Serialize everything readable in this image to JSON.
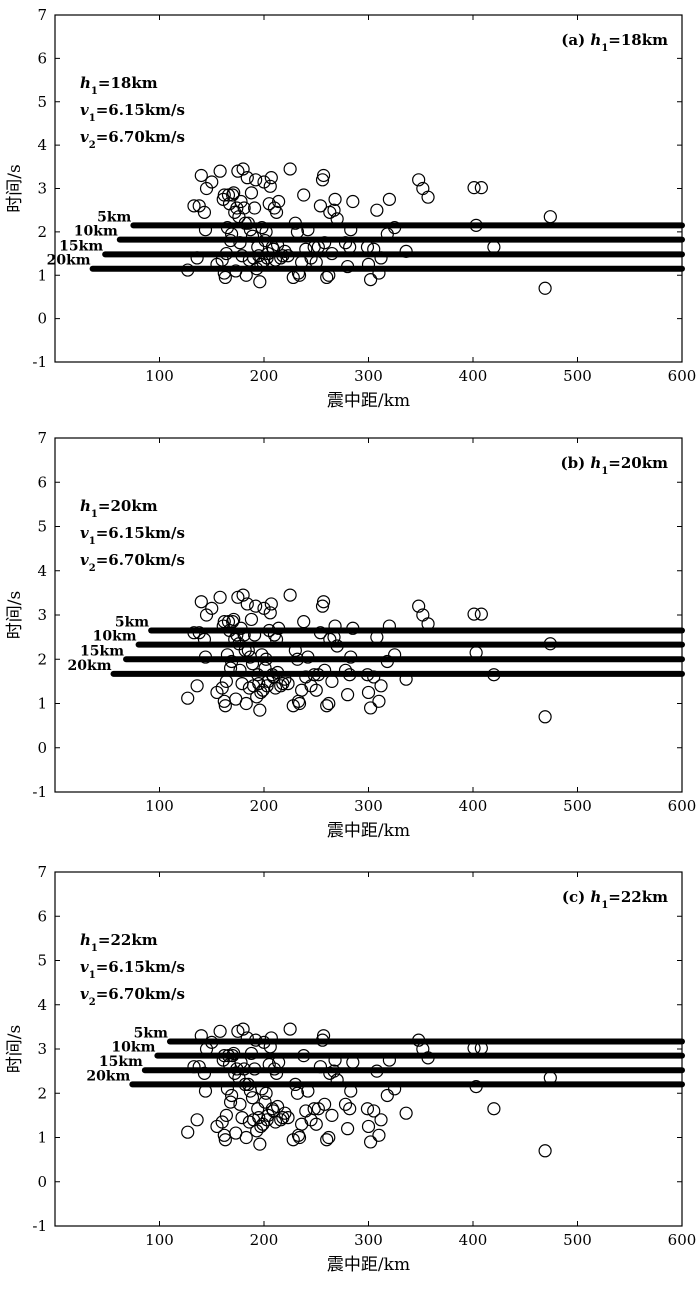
{
  "chart_data": [
    {
      "type": "scatter",
      "panel_label": "(a) ",
      "title_h": "h",
      "title_sub": "1",
      "title_val": "=18km",
      "params": [
        {
          "base": "h",
          "sub": "1",
          "rest": "=18km"
        },
        {
          "base": "v",
          "sub": "1",
          "rest": "=6.15km/s"
        },
        {
          "base": "v",
          "sub": "2",
          "rest": "=6.70km/s"
        }
      ],
      "xlabel": "震中距/km",
      "ylabel": "时间/s",
      "xlim": [
        0,
        600
      ],
      "ylim": [
        -1,
        7
      ],
      "xticks": [
        100,
        200,
        300,
        400,
        500,
        600
      ],
      "yticks": [
        -1,
        0,
        1,
        2,
        3,
        4,
        5,
        6,
        7
      ],
      "lines": [
        {
          "label": "5km",
          "x_start": 75,
          "y": 2.15
        },
        {
          "label": "10km",
          "x_start": 62,
          "y": 1.82
        },
        {
          "label": "15km",
          "x_start": 48,
          "y": 1.48
        },
        {
          "label": "20km",
          "x_start": 36,
          "y": 1.15
        }
      ]
    },
    {
      "type": "scatter",
      "panel_label": "(b) ",
      "title_h": "h",
      "title_sub": "1",
      "title_val": "=20km",
      "params": [
        {
          "base": "h",
          "sub": "1",
          "rest": "=20km"
        },
        {
          "base": "v",
          "sub": "1",
          "rest": "=6.15km/s"
        },
        {
          "base": "v",
          "sub": "2",
          "rest": "=6.70km/s"
        }
      ],
      "xlabel": "震中距/km",
      "ylabel": "时间/s",
      "xlim": [
        0,
        600
      ],
      "ylim": [
        -1,
        7
      ],
      "xticks": [
        100,
        200,
        300,
        400,
        500,
        600
      ],
      "yticks": [
        -1,
        0,
        1,
        2,
        3,
        4,
        5,
        6,
        7
      ],
      "lines": [
        {
          "label": "5km",
          "x_start": 92,
          "y": 2.65
        },
        {
          "label": "10km",
          "x_start": 80,
          "y": 2.33
        },
        {
          "label": "15km",
          "x_start": 68,
          "y": 2.0
        },
        {
          "label": "20km",
          "x_start": 56,
          "y": 1.67
        }
      ]
    },
    {
      "type": "scatter",
      "panel_label": "(c) ",
      "title_h": "h",
      "title_sub": "1",
      "title_val": "=22km",
      "params": [
        {
          "base": "h",
          "sub": "1",
          "rest": "=22km"
        },
        {
          "base": "v",
          "sub": "1",
          "rest": "=6.15km/s"
        },
        {
          "base": "v",
          "sub": "2",
          "rest": "=6.70km/s"
        }
      ],
      "xlabel": "震中距/km",
      "ylabel": "时间/s",
      "xlim": [
        0,
        600
      ],
      "ylim": [
        -1,
        7
      ],
      "xticks": [
        100,
        200,
        300,
        400,
        500,
        600
      ],
      "yticks": [
        -1,
        0,
        1,
        2,
        3,
        4,
        5,
        6,
        7
      ],
      "lines": [
        {
          "label": "5km",
          "x_start": 110,
          "y": 3.17
        },
        {
          "label": "10km",
          "x_start": 98,
          "y": 2.85
        },
        {
          "label": "15km",
          "x_start": 86,
          "y": 2.52
        },
        {
          "label": "20km",
          "x_start": 74,
          "y": 2.2
        }
      ]
    }
  ],
  "points": [
    [
      127,
      1.12
    ],
    [
      133,
      2.6
    ],
    [
      136,
      1.4
    ],
    [
      138,
      2.6
    ],
    [
      140,
      3.3
    ],
    [
      143,
      2.45
    ],
    [
      144,
      2.05
    ],
    [
      145,
      3.0
    ],
    [
      150,
      3.15
    ],
    [
      155,
      1.25
    ],
    [
      158,
      3.4
    ],
    [
      160,
      1.35
    ],
    [
      161,
      2.75
    ],
    [
      162,
      2.85
    ],
    [
      162,
      1.05
    ],
    [
      163,
      0.95
    ],
    [
      164,
      1.5
    ],
    [
      165,
      2.1
    ],
    [
      166,
      2.85
    ],
    [
      167,
      2.65
    ],
    [
      168,
      1.8
    ],
    [
      169,
      1.95
    ],
    [
      170,
      2.85
    ],
    [
      171,
      2.9
    ],
    [
      172,
      2.45
    ],
    [
      173,
      1.1
    ],
    [
      174,
      2.55
    ],
    [
      175,
      3.4
    ],
    [
      176,
      2.35
    ],
    [
      177,
      1.75
    ],
    [
      178,
      2.7
    ],
    [
      179,
      1.45
    ],
    [
      180,
      3.45
    ],
    [
      181,
      2.55
    ],
    [
      182,
      2.2
    ],
    [
      183,
      1.0
    ],
    [
      184,
      3.25
    ],
    [
      185,
      2.2
    ],
    [
      186,
      1.35
    ],
    [
      187,
      2.05
    ],
    [
      188,
      2.9
    ],
    [
      189,
      1.9
    ],
    [
      190,
      1.4
    ],
    [
      191,
      2.55
    ],
    [
      192,
      3.2
    ],
    [
      193,
      1.15
    ],
    [
      194,
      1.65
    ],
    [
      195,
      1.45
    ],
    [
      196,
      0.85
    ],
    [
      197,
      1.25
    ],
    [
      198,
      2.1
    ],
    [
      199,
      1.3
    ],
    [
      200,
      3.15
    ],
    [
      201,
      1.8
    ],
    [
      202,
      2.0
    ],
    [
      203,
      1.4
    ],
    [
      204,
      1.5
    ],
    [
      205,
      2.65
    ],
    [
      206,
      3.05
    ],
    [
      207,
      3.25
    ],
    [
      208,
      1.65
    ],
    [
      209,
      1.6
    ],
    [
      210,
      2.55
    ],
    [
      211,
      1.35
    ],
    [
      212,
      2.45
    ],
    [
      213,
      1.7
    ],
    [
      214,
      2.7
    ],
    [
      216,
      1.4
    ],
    [
      218,
      1.45
    ],
    [
      220,
      1.55
    ],
    [
      223,
      1.45
    ],
    [
      225,
      3.45
    ],
    [
      228,
      0.95
    ],
    [
      230,
      2.2
    ],
    [
      232,
      2.0
    ],
    [
      233,
      1.05
    ],
    [
      234,
      1.0
    ],
    [
      236,
      1.3
    ],
    [
      238,
      2.85
    ],
    [
      240,
      1.6
    ],
    [
      242,
      2.05
    ],
    [
      245,
      1.4
    ],
    [
      248,
      1.65
    ],
    [
      250,
      1.3
    ],
    [
      252,
      1.65
    ],
    [
      254,
      2.6
    ],
    [
      256,
      3.2
    ],
    [
      257,
      3.3
    ],
    [
      258,
      1.75
    ],
    [
      260,
      0.95
    ],
    [
      262,
      1.0
    ],
    [
      263,
      2.45
    ],
    [
      265,
      1.5
    ],
    [
      267,
      2.5
    ],
    [
      268,
      2.75
    ],
    [
      270,
      2.3
    ],
    [
      278,
      1.75
    ],
    [
      280,
      1.2
    ],
    [
      282,
      1.65
    ],
    [
      283,
      2.05
    ],
    [
      285,
      2.7
    ],
    [
      299,
      1.65
    ],
    [
      300,
      1.25
    ],
    [
      302,
      0.9
    ],
    [
      305,
      1.6
    ],
    [
      308,
      2.5
    ],
    [
      310,
      1.05
    ],
    [
      312,
      1.4
    ],
    [
      318,
      1.95
    ],
    [
      320,
      2.75
    ],
    [
      325,
      2.1
    ],
    [
      336,
      1.55
    ],
    [
      348,
      3.2
    ],
    [
      352,
      3.0
    ],
    [
      357,
      2.8
    ],
    [
      401,
      3.02
    ],
    [
      403,
      2.15
    ],
    [
      408,
      3.02
    ],
    [
      420,
      1.65
    ],
    [
      469,
      0.7
    ],
    [
      474,
      2.35
    ]
  ]
}
